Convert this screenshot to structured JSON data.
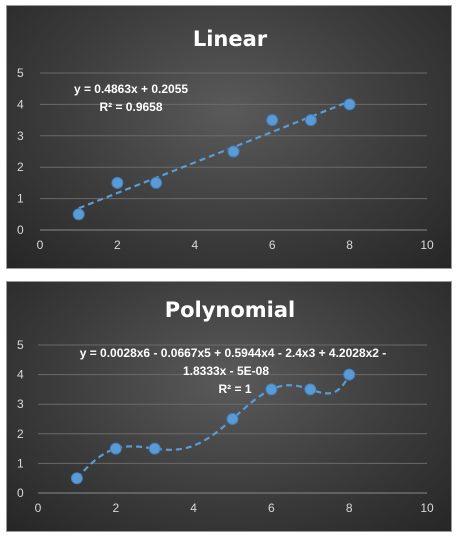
{
  "chart_data": [
    {
      "type": "scatter",
      "title": "Linear",
      "points": [
        [
          1,
          0.5
        ],
        [
          2,
          1.5
        ],
        [
          3,
          1.5
        ],
        [
          5,
          2.5
        ],
        [
          6,
          3.5
        ],
        [
          7,
          3.5
        ],
        [
          8,
          4
        ]
      ],
      "xlim": [
        0,
        10
      ],
      "ylim": [
        0,
        5
      ],
      "xticks": [
        0,
        2,
        4,
        6,
        8,
        10
      ],
      "yticks": [
        0,
        1,
        2,
        3,
        4,
        5
      ],
      "grid": "horizontal",
      "trendline": {
        "type": "linear",
        "coefficients": [
          0.4863,
          0.2055
        ],
        "range": [
          1,
          8
        ]
      },
      "equation_lines": [
        "y = 0.4863x + 0.2055",
        "R² = 0.9658"
      ],
      "colors": {
        "marker": "#5b9bd5"
      }
    },
    {
      "type": "scatter",
      "title": "Polynomial",
      "points": [
        [
          1,
          0.5
        ],
        [
          2,
          1.5
        ],
        [
          3,
          1.5
        ],
        [
          5,
          2.5
        ],
        [
          6,
          3.5
        ],
        [
          7,
          3.5
        ],
        [
          8,
          4
        ]
      ],
      "xlim": [
        0,
        10
      ],
      "ylim": [
        0,
        5
      ],
      "xticks": [
        0,
        2,
        4,
        6,
        8,
        10
      ],
      "yticks": [
        0,
        1,
        2,
        3,
        4,
        5
      ],
      "grid": "horizontal",
      "trendline": {
        "type": "polynomial",
        "order": 6,
        "range": [
          1,
          8
        ]
      },
      "equation_lines": [
        "y = 0.0028x6 - 0.0667x5 + 0.5944x4 - 2.4x3 + 4.2028x2 -",
        "1.8333x - 5E-08",
        "R² = 1"
      ],
      "colors": {
        "marker": "#5b9bd5"
      }
    }
  ]
}
